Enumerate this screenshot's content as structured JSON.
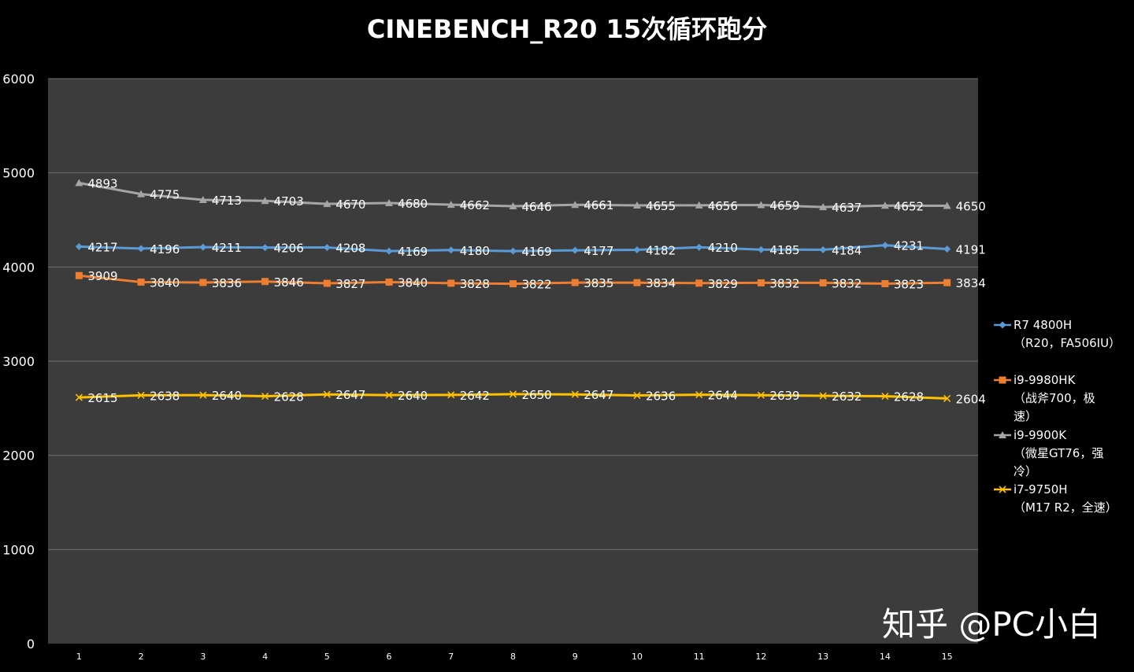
{
  "watermark": "知乎 @PC小白",
  "chart_data": {
    "type": "line",
    "title": "CINEBENCH_R20 15次循环跑分",
    "x": [
      1,
      2,
      3,
      4,
      5,
      6,
      7,
      8,
      9,
      10,
      11,
      12,
      13,
      14,
      15
    ],
    "ylim": [
      0,
      6000
    ],
    "yticks": [
      0,
      1000,
      2000,
      3000,
      4000,
      5000,
      6000
    ],
    "grid": true,
    "legend_position": "right",
    "series": [
      {
        "name": "R7 4800H",
        "legend_lines": [
          "R7 4800H",
          "（R20，FA506IU）"
        ],
        "color": "#5b9bd5",
        "marker": "diamond",
        "values": [
          4217,
          4196,
          4211,
          4206,
          4208,
          4169,
          4180,
          4169,
          4177,
          4182,
          4210,
          4185,
          4184,
          4231,
          4191
        ]
      },
      {
        "name": "i9-9980HK",
        "legend_lines": [
          "i9-9980HK",
          "（战斧700，极",
          "速）"
        ],
        "color": "#ed7d31",
        "marker": "square",
        "values": [
          3909,
          3840,
          3836,
          3846,
          3827,
          3840,
          3828,
          3822,
          3835,
          3834,
          3829,
          3832,
          3832,
          3823,
          3834
        ]
      },
      {
        "name": "i9-9900K",
        "legend_lines": [
          "i9-9900K",
          "（微星GT76，强",
          "冷）"
        ],
        "color": "#a5a5a5",
        "marker": "triangle",
        "values": [
          4893,
          4775,
          4713,
          4703,
          4670,
          4680,
          4662,
          4646,
          4661,
          4655,
          4656,
          4659,
          4637,
          4652,
          4650
        ]
      },
      {
        "name": "i7-9750H",
        "legend_lines": [
          "i7-9750H",
          "（M17 R2，全速）"
        ],
        "color": "#ffc000",
        "marker": "x",
        "values": [
          2615,
          2638,
          2640,
          2628,
          2647,
          2640,
          2642,
          2650,
          2647,
          2636,
          2644,
          2639,
          2632,
          2628,
          2604
        ]
      }
    ]
  }
}
